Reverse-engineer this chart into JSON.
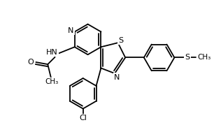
{
  "bg_color": "#ffffff",
  "line_color": "#000000",
  "line_width": 1.3,
  "font_size": 8,
  "figsize": [
    3.06,
    1.89
  ],
  "dpi": 100,
  "xlim": [
    0,
    10
  ],
  "ylim": [
    0,
    6.2
  ]
}
